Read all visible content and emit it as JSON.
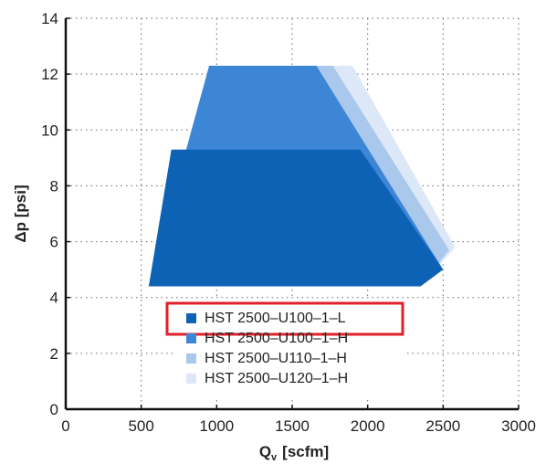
{
  "chart_data": {
    "type": "area",
    "title": "",
    "xlabel": "Q",
    "xlabel_sub": "v",
    "xlabel_unit": "[scfm]",
    "ylabel": "Δp [psi]",
    "xlim": [
      0,
      3000
    ],
    "ylim": [
      0,
      14
    ],
    "xticks": [
      "0",
      "500",
      "1000",
      "1500",
      "2000",
      "2500",
      "3000"
    ],
    "yticks": [
      "0",
      "2",
      "4",
      "6",
      "8",
      "10",
      "12",
      "14"
    ],
    "grid": true,
    "legend_position": "bottom-center",
    "series": [
      {
        "name": "HST 2500–U120–1–H",
        "color": "#dce8f7",
        "polygon": [
          [
            550,
            4.4
          ],
          [
            950,
            12.3
          ],
          [
            1900,
            12.3
          ],
          [
            2580,
            5.8
          ],
          [
            2350,
            4.4
          ]
        ]
      },
      {
        "name": "HST 2500–U110–1–H",
        "color": "#a9c8ec",
        "polygon": [
          [
            550,
            4.4
          ],
          [
            950,
            12.3
          ],
          [
            1770,
            12.3
          ],
          [
            2540,
            5.7
          ],
          [
            2350,
            4.4
          ]
        ]
      },
      {
        "name": "HST 2500–U100–1–H",
        "color": "#3d86d6",
        "polygon": [
          [
            550,
            4.4
          ],
          [
            950,
            12.3
          ],
          [
            1660,
            12.3
          ],
          [
            2500,
            5.0
          ],
          [
            2350,
            4.4
          ]
        ]
      },
      {
        "name": "HST 2500–U100–1–L",
        "color": "#0e62b5",
        "polygon": [
          [
            550,
            4.4
          ],
          [
            700,
            9.3
          ],
          [
            1950,
            9.3
          ],
          [
            2500,
            5.0
          ],
          [
            2350,
            4.4
          ]
        ]
      }
    ],
    "legend_highlight": "HST 2500–U100–1–L",
    "highlight_color": "#e0202a"
  }
}
